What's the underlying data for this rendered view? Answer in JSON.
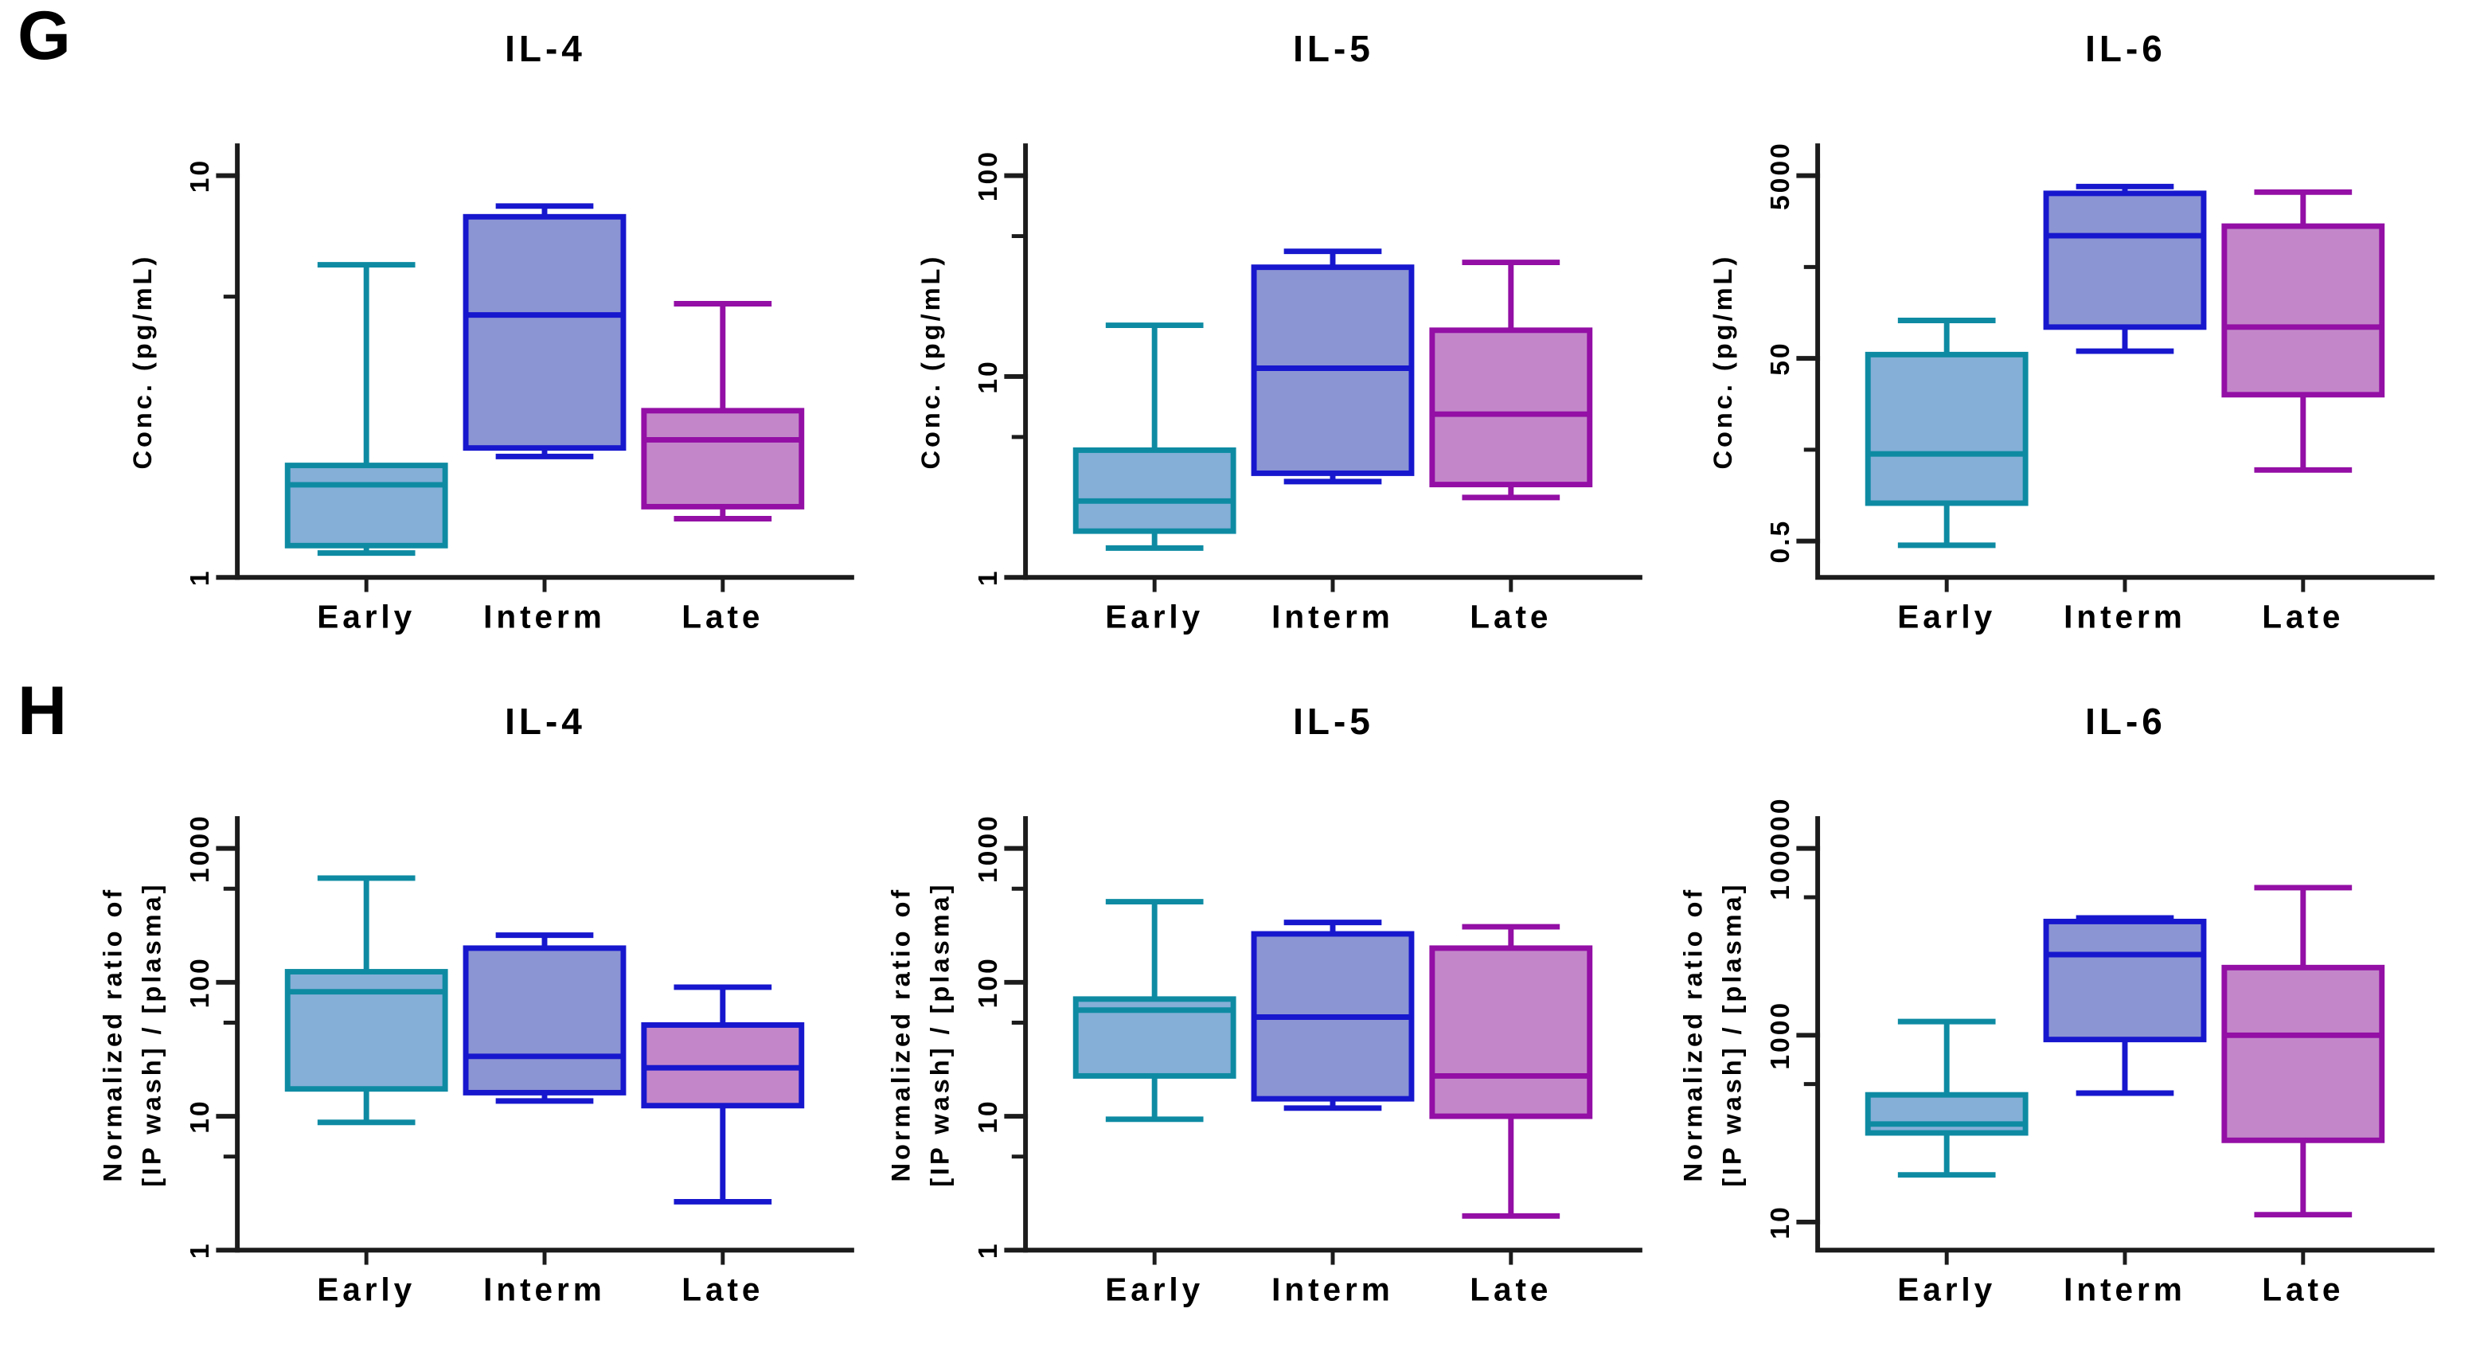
{
  "panels": {
    "g_label": "G",
    "h_label": "H"
  },
  "categories": [
    "Early",
    "Interm",
    "Late"
  ],
  "colors": {
    "axis": "#1c1c1c",
    "text": "#000000",
    "early": {
      "stroke": "#0E8BA3",
      "fill": "#85AFD7"
    },
    "interm": {
      "stroke": "#1717CE",
      "fill": "#8C95D3"
    },
    "late": {
      "stroke": "#930FA5",
      "fill": "#C387C9"
    }
  },
  "chart_data": [
    {
      "type": "box",
      "panel": "G",
      "title": "IL-4",
      "ylabel_lines": [
        "Conc. (pg/mL)"
      ],
      "categories": [
        "Early",
        "Interm",
        "Late"
      ],
      "yscale": "log",
      "baseline_value": 1,
      "top_value": 10,
      "yticks": [
        {
          "value": 1,
          "label": "1"
        },
        {
          "value": 10,
          "label": "10"
        }
      ],
      "minor_ticks": [
        5
      ],
      "boxes": [
        {
          "group": "Early",
          "fill": "early",
          "stroke": "early",
          "min": 1.15,
          "q1": 1.2,
          "median": 1.7,
          "q3": 1.9,
          "max": 6.0
        },
        {
          "group": "Interm",
          "fill": "interm",
          "stroke": "interm",
          "min": 2.0,
          "q1": 2.1,
          "median": 4.5,
          "q3": 7.9,
          "max": 8.4
        },
        {
          "group": "Late",
          "fill": "late",
          "stroke": "late",
          "min": 1.4,
          "q1": 1.5,
          "median": 2.2,
          "q3": 2.6,
          "max": 4.8
        }
      ]
    },
    {
      "type": "box",
      "panel": "G",
      "title": "IL-5",
      "ylabel_lines": [
        "Conc. (pg/mL)"
      ],
      "categories": [
        "Early",
        "Interm",
        "Late"
      ],
      "yscale": "log",
      "baseline_value": 1,
      "top_value": 100,
      "yticks": [
        {
          "value": 1,
          "label": "1"
        },
        {
          "value": 10,
          "label": "10"
        },
        {
          "value": 100,
          "label": "100"
        }
      ],
      "minor_ticks": [
        5,
        50
      ],
      "boxes": [
        {
          "group": "Early",
          "fill": "early",
          "stroke": "early",
          "min": 1.4,
          "q1": 1.7,
          "median": 2.4,
          "q3": 4.3,
          "max": 18
        },
        {
          "group": "Interm",
          "fill": "interm",
          "stroke": "interm",
          "min": 3.0,
          "q1": 3.3,
          "median": 11,
          "q3": 35,
          "max": 42
        },
        {
          "group": "Late",
          "fill": "late",
          "stroke": "late",
          "min": 2.5,
          "q1": 2.9,
          "median": 6.5,
          "q3": 17,
          "max": 37
        }
      ]
    },
    {
      "type": "box",
      "panel": "G",
      "title": "IL-6",
      "ylabel_lines": [
        "Conc. (pg/mL)"
      ],
      "categories": [
        "Early",
        "Interm",
        "Late"
      ],
      "yscale": "log",
      "baseline_value": 0.2,
      "top_value": 5000,
      "yticks": [
        {
          "value": 0.5,
          "label": "0.5"
        },
        {
          "value": 50,
          "label": "50"
        },
        {
          "value": 5000,
          "label": "5000"
        }
      ],
      "minor_ticks": [
        5,
        500
      ],
      "boxes": [
        {
          "group": "Early",
          "fill": "early",
          "stroke": "early",
          "min": 0.45,
          "q1": 1.3,
          "median": 4.5,
          "q3": 55,
          "max": 130
        },
        {
          "group": "Interm",
          "fill": "interm",
          "stroke": "interm",
          "min": 60,
          "q1": 110,
          "median": 1100,
          "q3": 3200,
          "max": 3800
        },
        {
          "group": "Late",
          "fill": "late",
          "stroke": "late",
          "min": 3,
          "q1": 20,
          "median": 110,
          "q3": 1400,
          "max": 3300
        }
      ]
    },
    {
      "type": "box",
      "panel": "H",
      "title": "IL-4",
      "ylabel_lines": [
        "Normalized ratio of",
        "[IP wash] / [plasma]"
      ],
      "categories": [
        "Early",
        "Interm",
        "Late"
      ],
      "yscale": "log",
      "baseline_value": 1,
      "top_value": 1000,
      "yticks": [
        {
          "value": 1,
          "label": "1"
        },
        {
          "value": 10,
          "label": "10"
        },
        {
          "value": 100,
          "label": "100"
        },
        {
          "value": 1000,
          "label": "1000"
        }
      ],
      "minor_ticks": [
        5,
        50,
        500
      ],
      "boxes": [
        {
          "group": "Early",
          "fill": "early",
          "stroke": "early",
          "min": 9,
          "q1": 16,
          "median": 85,
          "q3": 120,
          "max": 600
        },
        {
          "group": "Interm",
          "fill": "interm",
          "stroke": "interm",
          "min": 13,
          "q1": 15,
          "median": 28,
          "q3": 180,
          "max": 225
        },
        {
          "group": "Late",
          "fill": "late",
          "stroke": "interm",
          "min": 2.3,
          "q1": 12,
          "median": 23,
          "q3": 48,
          "max": 92
        }
      ]
    },
    {
      "type": "box",
      "panel": "H",
      "title": "IL-5",
      "ylabel_lines": [
        "Normalized ratio of",
        "[IP wash] / [plasma]"
      ],
      "categories": [
        "Early",
        "Interm",
        "Late"
      ],
      "yscale": "log",
      "baseline_value": 1,
      "top_value": 1000,
      "yticks": [
        {
          "value": 1,
          "label": "1"
        },
        {
          "value": 10,
          "label": "10"
        },
        {
          "value": 100,
          "label": "100"
        },
        {
          "value": 1000,
          "label": "1000"
        }
      ],
      "minor_ticks": [
        5,
        50,
        500
      ],
      "boxes": [
        {
          "group": "Early",
          "fill": "early",
          "stroke": "early",
          "min": 9.5,
          "q1": 20,
          "median": 62,
          "q3": 75,
          "max": 400
        },
        {
          "group": "Interm",
          "fill": "interm",
          "stroke": "interm",
          "min": 11.5,
          "q1": 13.5,
          "median": 55,
          "q3": 230,
          "max": 280
        },
        {
          "group": "Late",
          "fill": "late",
          "stroke": "late",
          "min": 1.8,
          "q1": 10,
          "median": 20,
          "q3": 180,
          "max": 260
        }
      ]
    },
    {
      "type": "box",
      "panel": "H",
      "title": "IL-6",
      "ylabel_lines": [
        "Normalized ratio of",
        "[IP wash] / [plasma]"
      ],
      "categories": [
        "Early",
        "Interm",
        "Late"
      ],
      "yscale": "log",
      "baseline_value": 5,
      "top_value": 100000,
      "yticks": [
        {
          "value": 10,
          "label": "10"
        },
        {
          "value": 1000,
          "label": "1000"
        },
        {
          "value": 100000,
          "label": "100000"
        }
      ],
      "minor_ticks": [
        300,
        30000
      ],
      "boxes": [
        {
          "group": "Early",
          "fill": "early",
          "stroke": "early",
          "min": 32,
          "q1": 90,
          "median": 112,
          "q3": 230,
          "max": 1400
        },
        {
          "group": "Interm",
          "fill": "interm",
          "stroke": "interm",
          "min": 240,
          "q1": 900,
          "median": 7300,
          "q3": 16500,
          "max": 18000
        },
        {
          "group": "Late",
          "fill": "late",
          "stroke": "late",
          "min": 12,
          "q1": 75,
          "median": 1000,
          "q3": 5300,
          "max": 38000
        }
      ]
    }
  ]
}
